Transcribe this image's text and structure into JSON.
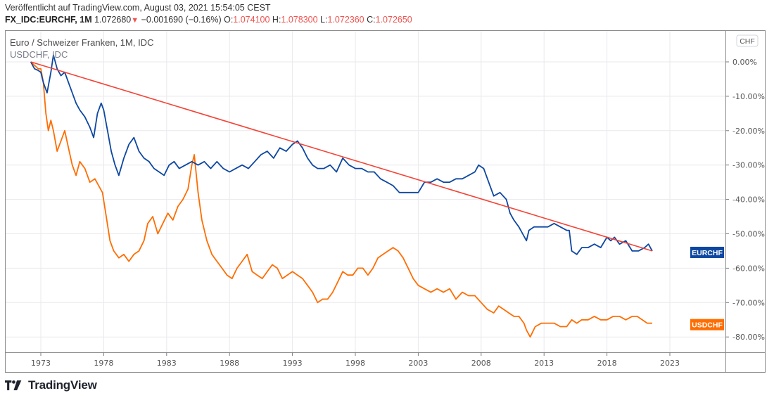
{
  "header": {
    "published": "Veröffentlicht auf TradingView.com, August 03, 2021 15:54:05 CEST",
    "symbol": "FX_IDC:EURCHF, 1M",
    "last": "1.072680",
    "change_icon": "triangle-down-icon",
    "change_icon_glyph": "▼",
    "change": "−0.001690 (−0.16%)",
    "o_label": "O:",
    "o_value": "1.074100",
    "h_label": "H:",
    "h_value": "1.078300",
    "l_label": "L:",
    "l_value": "1.072360",
    "c_label": "C:",
    "c_value": "1.072650"
  },
  "legend": {
    "main": "Euro / Schweizer Franken, 1M, IDC",
    "compare": "USDCHF, IDC"
  },
  "currency_button": "CHF",
  "brand": "TradingView",
  "colors": {
    "eurchf": "#0d47a1",
    "usdchf": "#ff6d00",
    "trendline": "#f44336",
    "grid": "#e9e9ee",
    "axis": "#787b86"
  },
  "chart_data": {
    "type": "line",
    "title": "Euro / Schweizer Franken, 1M, IDC",
    "xlabel": "",
    "ylabel": "",
    "x_ticks": [
      "1973",
      "1978",
      "1983",
      "1988",
      "1993",
      "1998",
      "2003",
      "2008",
      "2013",
      "2018",
      "2023"
    ],
    "y_ticks": [
      "0.00%",
      "-10.00%",
      "-20.00%",
      "-30.00%",
      "-40.00%",
      "-50.00%",
      "-60.00%",
      "-70.00%",
      "-80.00%"
    ],
    "xlim": [
      1971.3,
      2027.3
    ],
    "ylim": [
      -84,
      3
    ],
    "grid": true,
    "legend": "top-left",
    "series": [
      {
        "name": "EURCHF",
        "label": "EURCHF",
        "x": [
          1972.2,
          1972.5,
          1972.8,
          1973.0,
          1973.2,
          1973.5,
          1973.8,
          1974.0,
          1974.3,
          1974.6,
          1974.9,
          1975.2,
          1975.5,
          1975.8,
          1976.1,
          1976.5,
          1976.9,
          1977.2,
          1977.5,
          1977.8,
          1978.0,
          1978.3,
          1978.6,
          1978.9,
          1979.2,
          1979.6,
          1980.0,
          1980.4,
          1980.8,
          1981.2,
          1981.6,
          1982.0,
          1982.4,
          1982.8,
          1983.2,
          1983.6,
          1984.0,
          1984.5,
          1985.0,
          1985.5,
          1986.0,
          1986.5,
          1987.0,
          1987.5,
          1988.0,
          1988.5,
          1989.0,
          1989.5,
          1990.0,
          1990.5,
          1991.0,
          1991.5,
          1992.0,
          1992.5,
          1993.0,
          1993.4,
          1993.8,
          1994.2,
          1994.6,
          1995.0,
          1995.5,
          1996.0,
          1996.5,
          1997.0,
          1997.5,
          1998.0,
          1998.5,
          1999.0,
          1999.5,
          2000.0,
          2000.5,
          2001.0,
          2001.5,
          2002.0,
          2002.5,
          2003.0,
          2003.5,
          2004.0,
          2004.5,
          2005.0,
          2005.5,
          2006.0,
          2006.5,
          2007.0,
          2007.5,
          2007.8,
          2008.2,
          2008.6,
          2009.0,
          2009.5,
          2010.0,
          2010.3,
          2010.6,
          2011.0,
          2011.3,
          2011.6,
          2011.8,
          2012.2,
          2012.8,
          2013.3,
          2013.8,
          2014.3,
          2014.8,
          2015.0,
          2015.2,
          2015.6,
          2016.0,
          2016.5,
          2017.0,
          2017.5,
          2018.0,
          2018.3,
          2018.6,
          2019.0,
          2019.5,
          2020.0,
          2020.5,
          2021.0,
          2021.3,
          2021.6
        ],
        "y": [
          0,
          -2,
          -2.5,
          -3,
          -6,
          -9,
          -3,
          2,
          -2,
          -4,
          -3,
          -6,
          -9,
          -12,
          -14,
          -16,
          -19,
          -22,
          -15,
          -12,
          -14,
          -20,
          -26,
          -30,
          -33,
          -28,
          -24,
          -22,
          -26,
          -28,
          -29,
          -31,
          -32,
          -33,
          -30,
          -29,
          -31,
          -30,
          -29,
          -30,
          -29,
          -31,
          -29,
          -31,
          -32,
          -31,
          -30,
          -31,
          -29,
          -27,
          -26,
          -28,
          -25,
          -26,
          -24,
          -23,
          -25,
          -28,
          -30,
          -31,
          -31,
          -30,
          -32,
          -28,
          -30,
          -31,
          -31,
          -32,
          -32,
          -34,
          -35,
          -36,
          -38,
          -38,
          -38,
          -38,
          -35,
          -35,
          -34,
          -35,
          -35,
          -34,
          -34,
          -33,
          -32,
          -30,
          -31,
          -35,
          -39,
          -38,
          -40,
          -44,
          -46,
          -48,
          -50,
          -52,
          -49,
          -48,
          -48,
          -48,
          -47,
          -48,
          -49,
          -49,
          -55,
          -56,
          -54,
          -54,
          -53,
          -54,
          -51,
          -52,
          -51,
          -53,
          -52,
          -55,
          -55,
          -54,
          -53,
          -55
        ]
      },
      {
        "name": "USDCHF",
        "label": "USDCHF",
        "x": [
          1972.2,
          1972.5,
          1972.8,
          1973.0,
          1973.2,
          1973.4,
          1973.6,
          1973.8,
          1974.0,
          1974.3,
          1974.6,
          1974.9,
          1975.2,
          1975.5,
          1975.8,
          1976.1,
          1976.5,
          1976.9,
          1977.3,
          1977.6,
          1977.9,
          1978.2,
          1978.5,
          1978.8,
          1979.2,
          1979.6,
          1980.0,
          1980.4,
          1980.8,
          1981.2,
          1981.5,
          1981.9,
          1982.3,
          1982.7,
          1983.1,
          1983.5,
          1983.9,
          1984.3,
          1984.7,
          1985.0,
          1985.2,
          1985.5,
          1985.8,
          1986.2,
          1986.6,
          1987.0,
          1987.4,
          1987.8,
          1988.2,
          1988.6,
          1989.0,
          1989.4,
          1989.8,
          1990.2,
          1990.6,
          1991.0,
          1991.4,
          1991.8,
          1992.2,
          1992.6,
          1993.0,
          1993.4,
          1993.8,
          1994.2,
          1994.6,
          1995.0,
          1995.4,
          1995.8,
          1996.2,
          1996.6,
          1997.0,
          1997.4,
          1997.8,
          1998.2,
          1998.6,
          1999.0,
          1999.4,
          1999.8,
          2000.2,
          2000.6,
          2001.0,
          2001.4,
          2001.8,
          2002.2,
          2002.6,
          2003.0,
          2003.5,
          2004.0,
          2004.5,
          2005.0,
          2005.5,
          2006.0,
          2006.5,
          2007.0,
          2007.5,
          2008.0,
          2008.5,
          2009.0,
          2009.4,
          2009.8,
          2010.2,
          2010.6,
          2011.0,
          2011.4,
          2011.6,
          2011.9,
          2012.3,
          2012.8,
          2013.3,
          2013.8,
          2014.3,
          2014.8,
          2015.2,
          2015.6,
          2016.0,
          2016.5,
          2017.0,
          2017.5,
          2018.0,
          2018.5,
          2019.0,
          2019.5,
          2020.0,
          2020.4,
          2020.8,
          2021.2,
          2021.6
        ],
        "y": [
          0,
          -1,
          -2,
          -2,
          -6,
          -15,
          -20,
          -17,
          -20,
          -26,
          -23,
          -20,
          -25,
          -30,
          -33,
          -29,
          -31,
          -35,
          -34,
          -36,
          -38,
          -45,
          -52,
          -55,
          -57,
          -56,
          -58,
          -56,
          -55,
          -52,
          -47,
          -45,
          -50,
          -47,
          -44,
          -46,
          -42,
          -40,
          -37,
          -30,
          -27,
          -38,
          -46,
          -52,
          -56,
          -58,
          -60,
          -62,
          -63,
          -60,
          -58,
          -56,
          -61,
          -62,
          -63,
          -61,
          -59,
          -60,
          -63,
          -62,
          -61,
          -62,
          -63,
          -65,
          -67,
          -70,
          -69,
          -69,
          -67,
          -64,
          -61,
          -62,
          -62,
          -60,
          -60,
          -62,
          -60,
          -57,
          -56,
          -55,
          -54,
          -55,
          -57,
          -60,
          -63,
          -65,
          -66,
          -67,
          -66,
          -67,
          -66,
          -69,
          -67,
          -68,
          -68,
          -70,
          -72,
          -73,
          -71,
          -72,
          -73,
          -74,
          -74,
          -76,
          -78,
          -80,
          -77,
          -76,
          -76,
          -76,
          -77,
          -77,
          -75,
          -76,
          -75,
          -75,
          -74,
          -75,
          -75,
          -74,
          -74,
          -75,
          -74,
          -74,
          -75,
          -76,
          -76
        ]
      },
      {
        "name": "Trendline",
        "label": "",
        "x": [
          1972.2,
          2021.6
        ],
        "y": [
          0,
          -55
        ]
      }
    ]
  }
}
